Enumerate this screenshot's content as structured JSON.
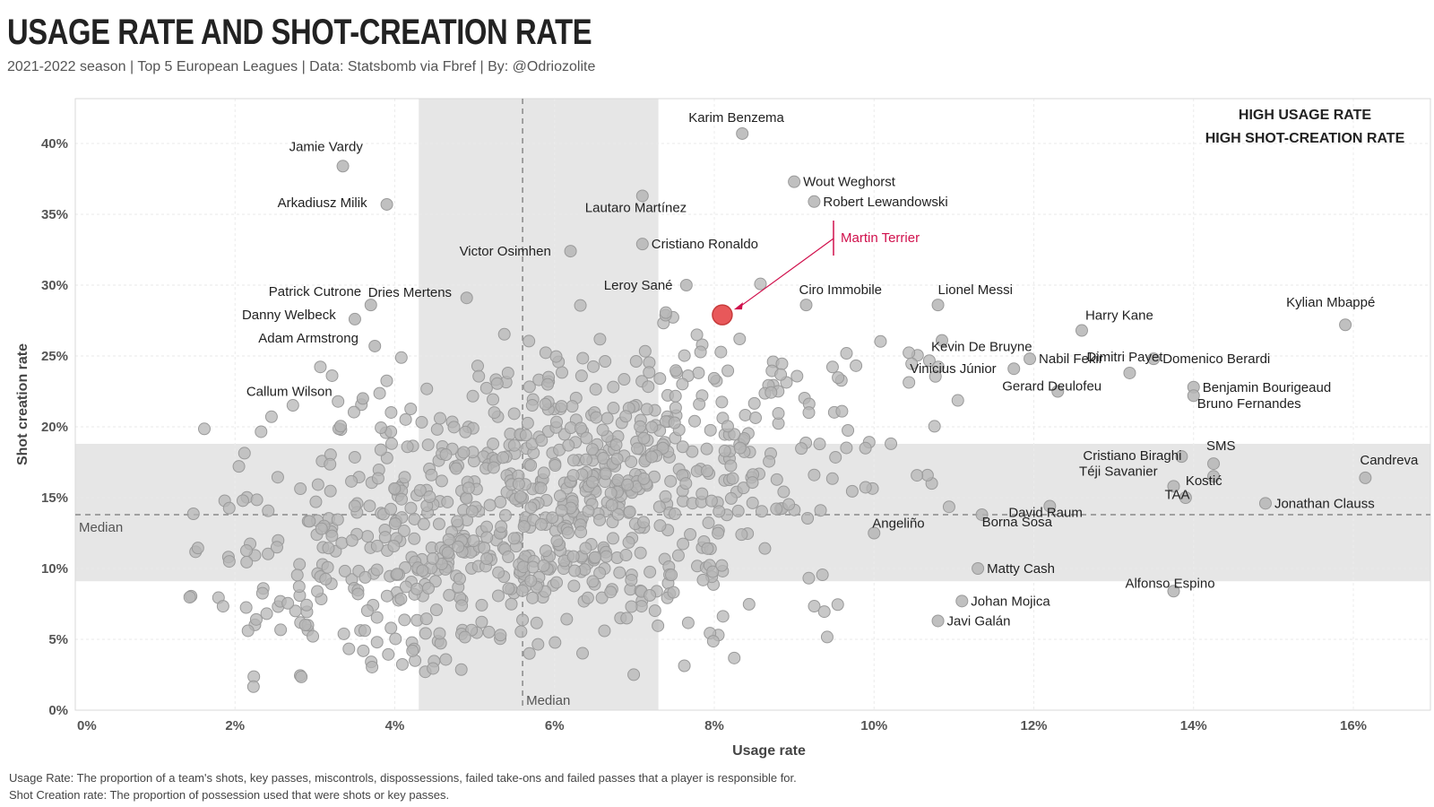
{
  "title": "USAGE RATE AND SHOT-CREATION RATE",
  "subtitle": "2021-2022 season | Top 5 European Leagues | Data: Statsbomb via Fbref | By: @Odriozolite",
  "footnotes": [
    "Usage Rate: The proportion of a team's shots, key passes, miscontrols, dispossessions, failed take-ons and failed passes that a player is responsible for.",
    "Shot Creation rate: The proportion of possession used that were shots or key passes."
  ],
  "colors": {
    "dot": "#b5b5b5",
    "dot_stroke": "#9a9a9a",
    "band": "#e6e6e6",
    "highlight": "#e8585a",
    "highlight_label": "#d0104c"
  },
  "chart_data": {
    "type": "scatter",
    "xlabel": "Usage rate",
    "ylabel": "Shot creation rate",
    "xlim": [
      0,
      17
    ],
    "ylim": [
      0,
      42
    ],
    "x_ticks": [
      {
        "v": 0,
        "label": "0%"
      },
      {
        "v": 2,
        "label": "2%"
      },
      {
        "v": 4,
        "label": "4%"
      },
      {
        "v": 6,
        "label": "6%"
      },
      {
        "v": 8,
        "label": "8%"
      },
      {
        "v": 10,
        "label": "10%"
      },
      {
        "v": 12,
        "label": "12%"
      },
      {
        "v": 14,
        "label": "14%"
      },
      {
        "v": 16,
        "label": "16%"
      }
    ],
    "y_ticks": [
      {
        "v": 0,
        "label": "0%"
      },
      {
        "v": 5,
        "label": "5%"
      },
      {
        "v": 10,
        "label": "10%"
      },
      {
        "v": 15,
        "label": "15%"
      },
      {
        "v": 20,
        "label": "20%"
      },
      {
        "v": 25,
        "label": "25%"
      },
      {
        "v": 30,
        "label": "30%"
      },
      {
        "v": 35,
        "label": "35%"
      },
      {
        "v": 40,
        "label": "40%"
      }
    ],
    "grid": true,
    "x_median": {
      "value": 5.6,
      "label": "Median"
    },
    "y_median": {
      "value": 13.8,
      "label": "Median"
    },
    "x_band": [
      4.3,
      7.3
    ],
    "y_band": [
      9.1,
      18.8
    ],
    "quadrant_label": [
      "HIGH USAGE RATE",
      "HIGH SHOT-CREATION RATE"
    ],
    "highlight": {
      "name": "Martin Terrier",
      "x": 8.1,
      "y": 27.9
    },
    "labeled_points": [
      {
        "name": "Karim Benzema",
        "x": 8.35,
        "y": 40.7
      },
      {
        "name": "Jamie Vardy",
        "x": 3.35,
        "y": 38.4
      },
      {
        "name": "Wout Weghorst",
        "x": 9.0,
        "y": 37.3
      },
      {
        "name": "Robert Lewandowski",
        "x": 9.25,
        "y": 35.9
      },
      {
        "name": "Arkadiusz Milik",
        "x": 3.9,
        "y": 35.7
      },
      {
        "name": "Lautaro Martínez",
        "x": 7.1,
        "y": 36.3
      },
      {
        "name": "Cristiano Ronaldo",
        "x": 7.1,
        "y": 32.9
      },
      {
        "name": "Victor Osimhen",
        "x": 6.2,
        "y": 32.4
      },
      {
        "name": "Leroy Sané",
        "x": 7.65,
        "y": 30.0
      },
      {
        "name": "Dries Mertens",
        "x": 4.9,
        "y": 29.1
      },
      {
        "name": "Patrick Cutrone",
        "x": 3.7,
        "y": 28.6
      },
      {
        "name": "Ciro Immobile",
        "x": 9.15,
        "y": 28.6
      },
      {
        "name": "Lionel Messi",
        "x": 10.8,
        "y": 28.6
      },
      {
        "name": "Danny Welbeck",
        "x": 3.5,
        "y": 27.6
      },
      {
        "name": "Kevin De Bruyne",
        "x": 10.85,
        "y": 26.1
      },
      {
        "name": "Harry Kane",
        "x": 12.6,
        "y": 26.8
      },
      {
        "name": "Kylian Mbappé",
        "x": 15.9,
        "y": 27.2
      },
      {
        "name": "Adam Armstrong",
        "x": 3.75,
        "y": 25.7
      },
      {
        "name": "Vinicius Júnior",
        "x": 11.75,
        "y": 24.1
      },
      {
        "name": "Nabil Fekir",
        "x": 11.95,
        "y": 24.8
      },
      {
        "name": "Domenico Berardi",
        "x": 13.5,
        "y": 24.8
      },
      {
        "name": "Dimitri Payet",
        "x": 13.2,
        "y": 23.8
      },
      {
        "name": "Benjamin Bourigeaud",
        "x": 14.0,
        "y": 22.8
      },
      {
        "name": "Bruno Fernandes",
        "x": 14.0,
        "y": 22.2
      },
      {
        "name": "Gerard Deulofeu",
        "x": 12.3,
        "y": 22.5
      },
      {
        "name": "Callum Wilson",
        "x": 3.6,
        "y": 22.0
      },
      {
        "name": "SMS",
        "x": 14.25,
        "y": 17.4
      },
      {
        "name": "Cristiano Biraghi",
        "x": 13.85,
        "y": 17.9
      },
      {
        "name": "Téji Savanier",
        "x": 14.25,
        "y": 16.5
      },
      {
        "name": "Candreva",
        "x": 16.15,
        "y": 16.4
      },
      {
        "name": "Kostić",
        "x": 13.9,
        "y": 15.0
      },
      {
        "name": "TAA",
        "x": 13.75,
        "y": 15.8
      },
      {
        "name": "Jonathan Clauss",
        "x": 14.9,
        "y": 14.6
      },
      {
        "name": "David Raum",
        "x": 12.2,
        "y": 14.4
      },
      {
        "name": "Borna Sosa",
        "x": 11.35,
        "y": 13.8
      },
      {
        "name": "Angeliño",
        "x": 10.0,
        "y": 12.5
      },
      {
        "name": "Matty Cash",
        "x": 11.3,
        "y": 10.0
      },
      {
        "name": "Johan Mojica",
        "x": 11.1,
        "y": 7.7
      },
      {
        "name": "Alfonso Espino",
        "x": 13.75,
        "y": 8.4
      },
      {
        "name": "Javi Galán",
        "x": 10.8,
        "y": 6.3
      }
    ]
  }
}
